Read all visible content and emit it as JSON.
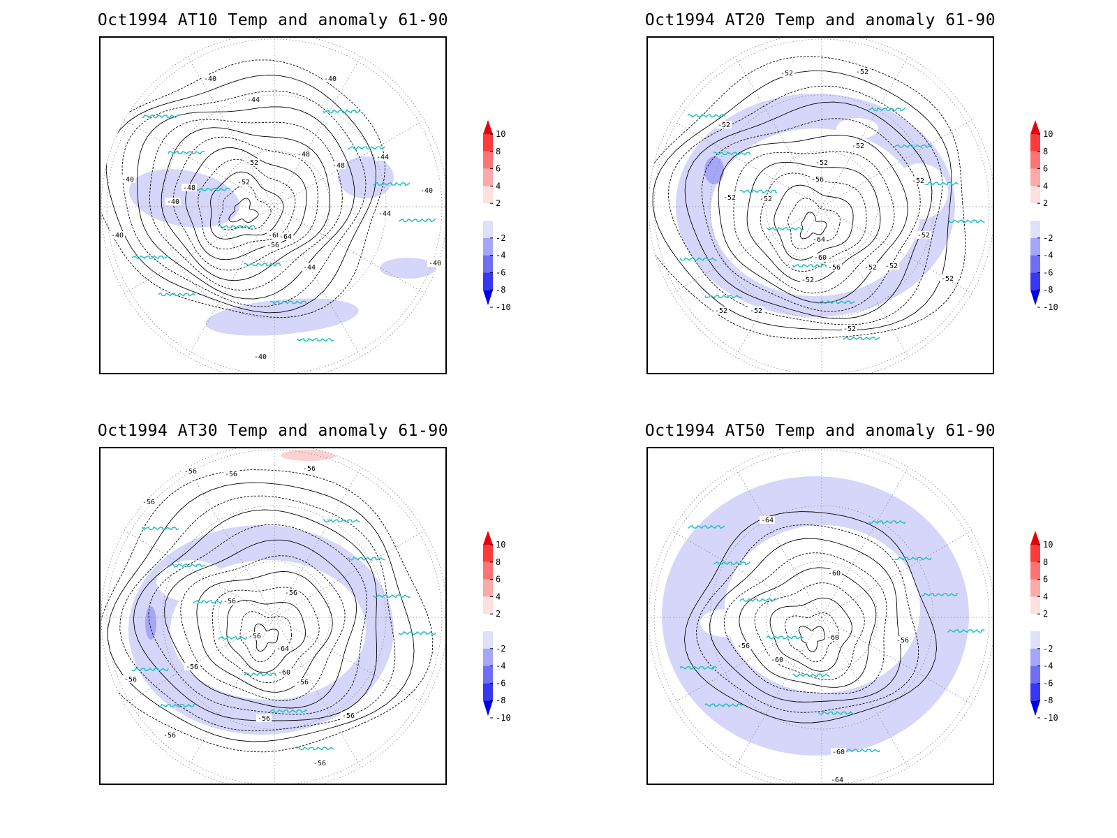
{
  "panels": [
    {
      "title": "Oct1994 AT10 Temp and anomaly 61-90",
      "contour_labels": [
        "-40",
        "-40",
        "-40",
        "-44",
        "-44",
        "-44",
        "-48",
        "-48",
        "-48",
        "-52",
        "-52",
        "-56",
        "-60",
        "-64",
        "-40",
        "-40",
        "-40",
        "-44",
        "-40",
        "-40"
      ],
      "anomaly_fill": "#d6d6fa"
    },
    {
      "title": "Oct1994 AT20 Temp and anomaly 61-90",
      "contour_labels": [
        "-52",
        "-52",
        "-52",
        "-52",
        "-52",
        "-52",
        "-56",
        "-60",
        "-64",
        "-52",
        "-52",
        "-52",
        "-52",
        "-52",
        "-56",
        "-52",
        "-52",
        "-52",
        "-52",
        "-52"
      ],
      "anomaly_fill": "#d6d6fa"
    },
    {
      "title": "Oct1994 AT30 Temp and anomaly 61-90",
      "contour_labels": [
        "-56",
        "-56",
        "-56",
        "-56",
        "-56",
        "-56",
        "-56",
        "-64",
        "-60",
        "-56",
        "-56",
        "-56",
        "-56",
        "-56",
        "-56",
        "-56"
      ],
      "anomaly_fill": "#d6d6fa"
    },
    {
      "title": "Oct1994 AT50 Temp and anomaly 61-90",
      "contour_labels": [
        "-64",
        "-60",
        "-56",
        "-60",
        "-56",
        "-60",
        "-60",
        "-64"
      ],
      "anomaly_fill": "#d6d6fa"
    }
  ],
  "colorbar": {
    "labels": [
      "10",
      "8",
      "6",
      "4",
      "2",
      "-2",
      "-4",
      "-6",
      "-8",
      "-10"
    ],
    "colors": [
      "#e8000a",
      "#fe3a3a",
      "#fe7474",
      "#fbaaaa",
      "#fde0e0",
      "#ffffff",
      "#e0e0fb",
      "#a6a6f8",
      "#6f6ff5",
      "#3838f3",
      "#0000ee"
    ]
  },
  "colors": {
    "coastline": "#22c2c2",
    "contour": "#000000",
    "grid": "#888888"
  }
}
